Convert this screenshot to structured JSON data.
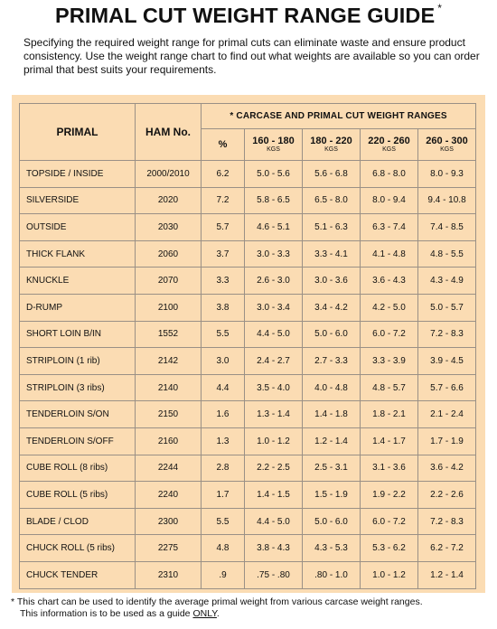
{
  "title": "PRIMAL CUT WEIGHT RANGE GUIDE",
  "title_mark": "*",
  "intro": "Specifying the required weight range for primal cuts can eliminate waste and ensure product consistency. Use the weight range chart to find out what weights are available so you can order primal that best suits your requirements.",
  "table": {
    "col_primal": "PRIMAL",
    "col_ham": "HAM No.",
    "group_header": "* CARCASE AND PRIMAL CUT WEIGHT RANGES",
    "col_pct": "%",
    "ranges": [
      {
        "label": "160 - 180",
        "unit": "KGS"
      },
      {
        "label": "180 - 220",
        "unit": "KGS"
      },
      {
        "label": "220 - 260",
        "unit": "KGS"
      },
      {
        "label": "260 - 300",
        "unit": "KGS"
      }
    ],
    "rows": [
      {
        "primal": "TOPSIDE / INSIDE",
        "ham": "2000/2010",
        "pct": "6.2",
        "v": [
          "5.0 - 5.6",
          "5.6 - 6.8",
          "6.8 - 8.0",
          "8.0 - 9.3"
        ]
      },
      {
        "primal": "SILVERSIDE",
        "ham": "2020",
        "pct": "7.2",
        "v": [
          "5.8 - 6.5",
          "6.5 - 8.0",
          "8.0 - 9.4",
          "9.4 - 10.8"
        ]
      },
      {
        "primal": "OUTSIDE",
        "ham": "2030",
        "pct": "5.7",
        "v": [
          "4.6 - 5.1",
          "5.1 - 6.3",
          "6.3 - 7.4",
          "7.4 - 8.5"
        ]
      },
      {
        "primal": "THICK FLANK",
        "ham": "2060",
        "pct": "3.7",
        "v": [
          "3.0 - 3.3",
          "3.3 - 4.1",
          "4.1 - 4.8",
          "4.8 - 5.5"
        ]
      },
      {
        "primal": "KNUCKLE",
        "ham": "2070",
        "pct": "3.3",
        "v": [
          "2.6 - 3.0",
          "3.0 - 3.6",
          "3.6 - 4.3",
          "4.3 - 4.9"
        ]
      },
      {
        "primal": "D-RUMP",
        "ham": "2100",
        "pct": "3.8",
        "v": [
          "3.0 - 3.4",
          "3.4 - 4.2",
          "4.2 - 5.0",
          "5.0 - 5.7"
        ]
      },
      {
        "primal": "SHORT LOIN B/IN",
        "ham": "1552",
        "pct": "5.5",
        "v": [
          "4.4 - 5.0",
          "5.0 - 6.0",
          "6.0 - 7.2",
          "7.2 - 8.3"
        ]
      },
      {
        "primal": "STRIPLOIN (1 rib)",
        "ham": "2142",
        "pct": "3.0",
        "v": [
          "2.4 - 2.7",
          "2.7 - 3.3",
          "3.3 - 3.9",
          "3.9 - 4.5"
        ]
      },
      {
        "primal": "STRIPLOIN (3 ribs)",
        "ham": "2140",
        "pct": "4.4",
        "v": [
          "3.5 - 4.0",
          "4.0 - 4.8",
          "4.8 - 5.7",
          "5.7 - 6.6"
        ]
      },
      {
        "primal": "TENDERLOIN S/ON",
        "ham": "2150",
        "pct": "1.6",
        "v": [
          "1.3 - 1.4",
          "1.4 - 1.8",
          "1.8 - 2.1",
          "2.1 - 2.4"
        ]
      },
      {
        "primal": "TENDERLOIN S/OFF",
        "ham": "2160",
        "pct": "1.3",
        "v": [
          "1.0 - 1.2",
          "1.2 - 1.4",
          "1.4 - 1.7",
          "1.7 - 1.9"
        ]
      },
      {
        "primal": "CUBE ROLL (8 ribs)",
        "ham": "2244",
        "pct": "2.8",
        "v": [
          "2.2 - 2.5",
          "2.5 - 3.1",
          "3.1 - 3.6",
          "3.6 - 4.2"
        ]
      },
      {
        "primal": "CUBE ROLL (5 ribs)",
        "ham": "2240",
        "pct": "1.7",
        "v": [
          "1.4 - 1.5",
          "1.5 - 1.9",
          "1.9 - 2.2",
          "2.2 - 2.6"
        ]
      },
      {
        "primal": "BLADE / CLOD",
        "ham": "2300",
        "pct": "5.5",
        "v": [
          "4.4 - 5.0",
          "5.0 - 6.0",
          "6.0 - 7.2",
          "7.2 - 8.3"
        ]
      },
      {
        "primal": "CHUCK ROLL (5 ribs)",
        "ham": "2275",
        "pct": "4.8",
        "v": [
          "3.8 - 4.3",
          "4.3 - 5.3",
          "5.3 - 6.2",
          "6.2 - 7.2"
        ]
      },
      {
        "primal": "CHUCK TENDER",
        "ham": "2310",
        "pct": ".9",
        "v": [
          ".75 - .80",
          ".80 - 1.0",
          "1.0 - 1.2",
          "1.2 - 1.4"
        ]
      }
    ]
  },
  "footnote": {
    "line1": "*  This chart can be used to identify the average primal weight from various carcase weight ranges.",
    "line2_prefix": "This information is to be used as a guide ",
    "line2_emph": "ONLY",
    "line2_suffix": "."
  },
  "colors": {
    "table_background": "#fbdcb3",
    "grid_line": "#9a9086"
  }
}
